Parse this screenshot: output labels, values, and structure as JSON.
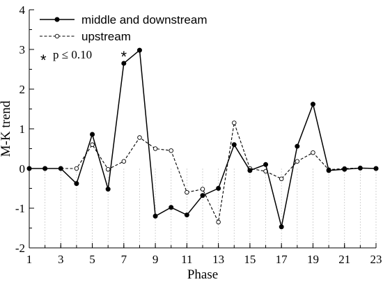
{
  "chart_data": {
    "type": "line",
    "xlabel": "Phase",
    "ylabel": "M-K trend",
    "xlim": [
      1,
      23
    ],
    "ylim": [
      -2,
      4
    ],
    "x_ticks": [
      1,
      3,
      5,
      7,
      9,
      11,
      13,
      15,
      17,
      19,
      21,
      23
    ],
    "y_ticks": [
      -2,
      -1,
      0,
      1,
      2,
      3,
      4
    ],
    "x": [
      1,
      2,
      3,
      4,
      5,
      6,
      7,
      8,
      9,
      10,
      11,
      12,
      13,
      14,
      15,
      16,
      17,
      18,
      19,
      20,
      21,
      22,
      23
    ],
    "series": [
      {
        "name": "middle and downstream",
        "style": "solid",
        "marker": "filled-circle",
        "values": [
          0,
          0,
          0,
          -0.38,
          0.86,
          -0.52,
          2.65,
          2.98,
          -1.2,
          -0.98,
          -1.17,
          -0.68,
          -0.5,
          0.6,
          -0.05,
          0.1,
          -1.47,
          0.56,
          1.62,
          -0.05,
          -0.02,
          0.01,
          0
        ]
      },
      {
        "name": "upstream",
        "style": "dashed",
        "marker": "open-circle",
        "values": [
          0,
          0,
          0,
          0,
          0.6,
          -0.02,
          0.18,
          0.78,
          0.5,
          0.45,
          -0.6,
          -0.52,
          -1.35,
          1.15,
          0,
          -0.07,
          -0.26,
          0.18,
          0.4,
          -0.03,
          0,
          0.01,
          0
        ]
      }
    ],
    "annotation": {
      "symbol": "*",
      "text": "p ≤ 0.10"
    },
    "significant_points": [
      {
        "series": 0,
        "x": 7,
        "symbol": "*"
      }
    ],
    "legend_position": "top-left",
    "grid": false
  }
}
